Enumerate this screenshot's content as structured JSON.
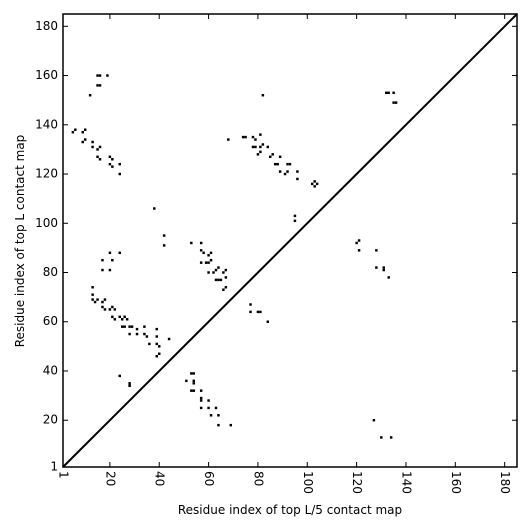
{
  "chart_data": {
    "type": "scatter",
    "xlabel": "Residue index of top L/5 contact map",
    "ylabel": "Residue index of top L contact map",
    "xlim": [
      1,
      185
    ],
    "ylim": [
      1,
      185
    ],
    "xticks": [
      1,
      20,
      40,
      60,
      80,
      100,
      120,
      140,
      160,
      180
    ],
    "yticks": [
      1,
      20,
      40,
      60,
      80,
      100,
      120,
      140,
      160,
      180
    ],
    "diagonal": true,
    "series": [
      {
        "color": "#000000",
        "x": [
          5,
          6,
          9,
          10,
          9,
          10,
          13,
          13,
          15,
          16,
          15,
          16,
          20,
          21,
          20,
          21,
          24,
          24,
          15,
          16,
          19,
          15,
          16,
          12,
          13,
          13,
          13,
          14,
          15,
          17,
          18,
          17,
          18,
          20,
          21,
          22,
          21,
          22,
          24,
          25,
          26,
          27,
          25,
          26,
          28,
          29,
          28,
          31,
          31,
          34,
          34,
          35,
          36,
          39,
          39,
          39,
          40,
          39,
          40,
          44,
          17,
          20,
          17,
          20,
          24,
          21,
          38,
          42,
          42,
          53,
          57,
          57,
          58,
          60,
          61,
          59,
          60,
          61,
          60,
          62,
          63,
          64,
          63,
          64,
          65,
          66,
          67,
          67,
          67,
          66,
          57,
          68,
          74,
          75,
          78,
          79,
          81,
          78,
          79,
          81,
          82,
          80,
          81,
          84,
          85,
          86,
          88,
          89,
          87,
          92,
          93,
          91,
          92,
          89,
          96,
          96,
          102,
          103,
          103,
          104,
          82,
          95,
          95,
          77,
          77,
          80,
          81,
          84,
          120,
          121,
          121,
          128,
          128,
          131,
          131,
          133,
          132,
          133,
          135,
          135,
          136,
          54,
          53,
          54,
          54,
          51,
          53,
          54,
          57,
          57,
          57,
          57,
          60,
          60,
          61,
          63,
          64,
          64,
          69,
          24,
          28,
          28,
          127,
          130,
          134
        ],
        "values": [
          137,
          138,
          137,
          138,
          133,
          134,
          133,
          131,
          130,
          131,
          127,
          126,
          127,
          126,
          124,
          123,
          124,
          120,
          160,
          160,
          160,
          156,
          156,
          152,
          74,
          71,
          69,
          68,
          69,
          68,
          69,
          66,
          65,
          65,
          66,
          65,
          62,
          61,
          62,
          61,
          62,
          61,
          58,
          58,
          58,
          58,
          55,
          57,
          55,
          58,
          55,
          54,
          51,
          57,
          54,
          51,
          50,
          46,
          47,
          53,
          81,
          81,
          85,
          88,
          88,
          85,
          106,
          95,
          91,
          92,
          92,
          89,
          88,
          87,
          88,
          84,
          84,
          85,
          80,
          80,
          81,
          82,
          77,
          77,
          77,
          80,
          81,
          78,
          74,
          73,
          84,
          134,
          135,
          135,
          135,
          134,
          136,
          131,
          131,
          131,
          132,
          128,
          129,
          131,
          127,
          128,
          124,
          127,
          124,
          124,
          124,
          120,
          121,
          121,
          121,
          118,
          116,
          115,
          117,
          116,
          152,
          103,
          101,
          67,
          64,
          64,
          64,
          60,
          92,
          93,
          89,
          89,
          82,
          82,
          81,
          78,
          153,
          153,
          153,
          149,
          149,
          39,
          39,
          36,
          35,
          36,
          32,
          32,
          32,
          29,
          28,
          25,
          28,
          25,
          22,
          25,
          22,
          18,
          18,
          38,
          35,
          34,
          20,
          13,
          13
        ]
      }
    ]
  }
}
